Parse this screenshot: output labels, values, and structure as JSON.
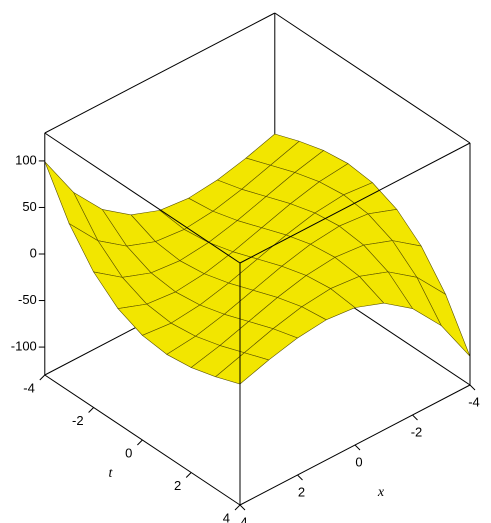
{
  "chart_data": {
    "type": "surface3d",
    "t_label": "t",
    "x_label": "x",
    "t": [
      -4,
      -3,
      -2,
      -1,
      0,
      1,
      2,
      3,
      4
    ],
    "x": [
      -4,
      -3,
      -2,
      -1,
      0,
      1,
      2,
      3,
      4
    ],
    "z": [
      [
        0,
        -9.7,
        -17.2,
        -20.6,
        -17.6,
        -6.3,
        15.6,
        50.1,
        99.2
      ],
      [
        9.7,
        0,
        -9.7,
        -17.2,
        -20.6,
        -17.6,
        -6.3,
        15.6,
        50.1
      ],
      [
        17.2,
        9.7,
        0,
        -9.7,
        -17.2,
        -20.6,
        -17.6,
        -6.3,
        15.6
      ],
      [
        20.6,
        17.2,
        9.7,
        0,
        -9.7,
        -17.2,
        -20.6,
        -17.6,
        -6.3
      ],
      [
        17.6,
        20.6,
        17.2,
        9.7,
        0,
        -9.7,
        -17.2,
        -20.6,
        -17.6
      ],
      [
        6.3,
        17.6,
        20.6,
        17.2,
        9.7,
        0,
        -9.7,
        -17.2,
        -20.6
      ],
      [
        -15.6,
        6.3,
        17.6,
        20.6,
        17.2,
        9.7,
        0,
        -9.7,
        -17.2
      ],
      [
        -50.1,
        -15.6,
        6.3,
        17.6,
        20.6,
        17.2,
        9.7,
        0,
        -9.7
      ],
      [
        -99.2,
        -50.1,
        -15.6,
        6.3,
        17.6,
        20.6,
        17.2,
        9.7,
        0
      ]
    ],
    "tlim": [
      -4,
      4
    ],
    "xlim": [
      -4,
      4
    ],
    "zlim": [
      -130,
      130
    ],
    "tticks": [
      -4,
      -2,
      0,
      2,
      4
    ],
    "xticks": [
      -4,
      -2,
      0,
      2,
      4
    ],
    "zticks": [
      -100,
      -50,
      0,
      50,
      100
    ],
    "color": "#f2e600",
    "edge_color": "#5a5200"
  }
}
